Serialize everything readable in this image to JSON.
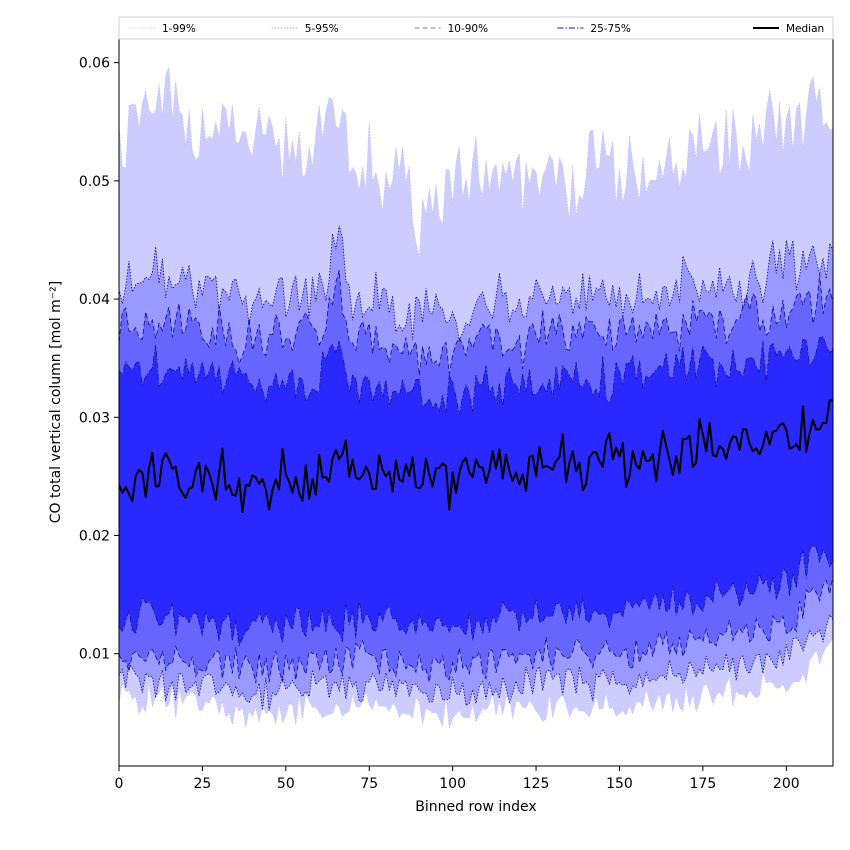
{
  "chart_data": {
    "type": "area",
    "title": "",
    "xlabel": "Binned row index",
    "ylabel": "CO total vertical column [mol m⁻²]",
    "xlim": [
      0,
      214
    ],
    "ylim": [
      0.0005,
      0.062
    ],
    "xticks": [
      0,
      25,
      50,
      75,
      100,
      125,
      150,
      175,
      200
    ],
    "xtick_labels": [
      "0",
      "25",
      "50",
      "75",
      "100",
      "125",
      "150",
      "175",
      "200"
    ],
    "yticks": [
      0.01,
      0.02,
      0.03,
      0.04,
      0.05,
      0.06
    ],
    "ytick_labels": [
      "0.01",
      "0.02",
      "0.03",
      "0.04",
      "0.05",
      "0.06"
    ],
    "legend_position": "top",
    "x": [
      0,
      10,
      20,
      30,
      40,
      50,
      60,
      66,
      70,
      80,
      90,
      100,
      110,
      120,
      130,
      140,
      150,
      160,
      170,
      180,
      190,
      200,
      210,
      214
    ],
    "series": [
      {
        "name": "1-99%",
        "style": "dotted",
        "lower": [
          0.0065,
          0.0062,
          0.0058,
          0.0056,
          0.0045,
          0.0052,
          0.0055,
          0.0052,
          0.0058,
          0.0055,
          0.0052,
          0.0048,
          0.0052,
          0.0055,
          0.0056,
          0.0055,
          0.0056,
          0.0058,
          0.0062,
          0.0065,
          0.0068,
          0.0072,
          0.0098,
          0.0112
        ],
        "upper": [
          0.0535,
          0.0565,
          0.0555,
          0.0545,
          0.0525,
          0.0535,
          0.0525,
          0.0575,
          0.0515,
          0.0505,
          0.0475,
          0.0495,
          0.0495,
          0.0505,
          0.0495,
          0.0505,
          0.0505,
          0.05,
          0.052,
          0.053,
          0.0545,
          0.0555,
          0.056,
          0.0555
        ]
      },
      {
        "name": "5-95%",
        "style": "dotted",
        "lower": [
          0.0075,
          0.0078,
          0.0072,
          0.007,
          0.0065,
          0.007,
          0.0072,
          0.0068,
          0.0075,
          0.0072,
          0.007,
          0.0068,
          0.007,
          0.0075,
          0.0078,
          0.0075,
          0.0075,
          0.008,
          0.0085,
          0.0088,
          0.0092,
          0.0098,
          0.012,
          0.0128
        ],
        "upper": [
          0.041,
          0.0425,
          0.0415,
          0.041,
          0.0395,
          0.0405,
          0.04,
          0.0455,
          0.0395,
          0.0395,
          0.0385,
          0.0385,
          0.0395,
          0.0395,
          0.0405,
          0.0405,
          0.04,
          0.0405,
          0.0415,
          0.041,
          0.042,
          0.0425,
          0.043,
          0.0435
        ]
      },
      {
        "name": "10-90%",
        "style": "dashed",
        "lower": [
          0.0095,
          0.01,
          0.0095,
          0.0092,
          0.0088,
          0.0092,
          0.0095,
          0.009,
          0.0098,
          0.0095,
          0.0093,
          0.009,
          0.0093,
          0.0098,
          0.01,
          0.01,
          0.01,
          0.0105,
          0.011,
          0.0115,
          0.012,
          0.0128,
          0.015,
          0.016
        ],
        "upper": [
          0.0378,
          0.0385,
          0.038,
          0.0375,
          0.0365,
          0.0372,
          0.037,
          0.041,
          0.0365,
          0.0365,
          0.0355,
          0.0355,
          0.0362,
          0.0362,
          0.0372,
          0.0372,
          0.037,
          0.0372,
          0.0382,
          0.038,
          0.0388,
          0.0392,
          0.04,
          0.0405
        ]
      },
      {
        "name": "25-75%",
        "style": "dashdot",
        "lower": [
          0.0125,
          0.0132,
          0.0128,
          0.0125,
          0.012,
          0.0125,
          0.0128,
          0.0122,
          0.013,
          0.0128,
          0.0125,
          0.0122,
          0.0125,
          0.013,
          0.0132,
          0.0132,
          0.0132,
          0.0138,
          0.0145,
          0.015,
          0.0155,
          0.0162,
          0.018,
          0.0185
        ],
        "upper": [
          0.0335,
          0.0345,
          0.034,
          0.0338,
          0.0328,
          0.0332,
          0.033,
          0.0365,
          0.0328,
          0.0328,
          0.032,
          0.032,
          0.0325,
          0.0325,
          0.0332,
          0.0335,
          0.0332,
          0.0335,
          0.0345,
          0.034,
          0.0348,
          0.035,
          0.0358,
          0.0362
        ]
      },
      {
        "name": "Median",
        "style": "solid",
        "values": [
          0.0235,
          0.0255,
          0.0245,
          0.025,
          0.024,
          0.0255,
          0.0245,
          0.027,
          0.025,
          0.0255,
          0.0245,
          0.0248,
          0.0255,
          0.025,
          0.0262,
          0.0262,
          0.0265,
          0.0262,
          0.028,
          0.0278,
          0.028,
          0.0282,
          0.029,
          0.0295
        ]
      }
    ],
    "colors": {
      "band_1_99": "#ccccff",
      "band_5_95": "#9999ff",
      "band_10_90": "#6666ff",
      "band_25_75": "#2929ff",
      "median": "#000000",
      "border_line": "#1a1a99"
    }
  }
}
